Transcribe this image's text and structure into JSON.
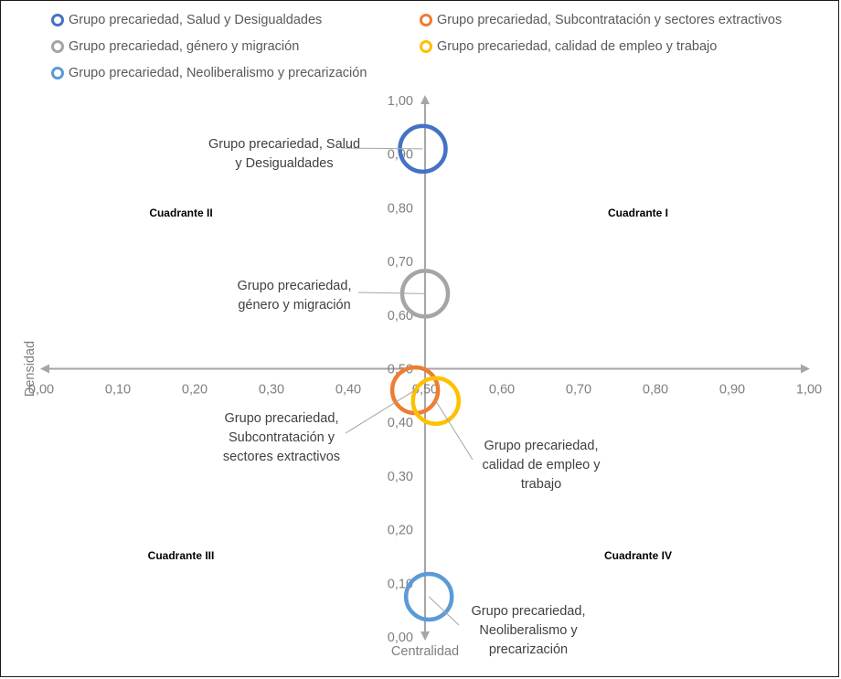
{
  "chart_data": {
    "type": "scatter",
    "x_axis": {
      "title": "Centralidad",
      "range": [
        0,
        1
      ],
      "ticks": [
        "0,00",
        "0,10",
        "0,20",
        "0,30",
        "0,40",
        "0,50",
        "0,60",
        "0,70",
        "0,80",
        "0,90",
        "1,00"
      ]
    },
    "y_axis": {
      "title": "Densidad",
      "range": [
        0,
        1
      ],
      "ticks": [
        "0,00",
        "0,10",
        "0,20",
        "0,30",
        "0,40",
        "0,50",
        "0,60",
        "0,70",
        "0,80",
        "0,90",
        "1,00"
      ]
    },
    "crossing": {
      "x": 0.5,
      "y": 0.5
    },
    "legend_position": "top",
    "quadrants": [
      {
        "id": "I",
        "label": "Cuadrante I",
        "position": "top-right"
      },
      {
        "id": "II",
        "label": "Cuadrante II",
        "position": "top-left"
      },
      {
        "id": "III",
        "label": "Cuadrante III",
        "position": "bottom-left"
      },
      {
        "id": "IV",
        "label": "Cuadrante IV",
        "position": "bottom-right"
      }
    ],
    "series": [
      {
        "key": "salud",
        "name": "Grupo precariedad, Salud y Desigualdades",
        "label_lines": [
          "Grupo precariedad, Salud",
          "y Desigualdades"
        ],
        "color": "#4472C4",
        "x": 0.497,
        "y": 0.91
      },
      {
        "key": "subcontratacion",
        "name": "Grupo precariedad, Subcontratación y sectores extractivos",
        "label_lines": [
          "Grupo precariedad,",
          "Subcontratación y",
          "sectores extractivos"
        ],
        "color": "#ED7D31",
        "x": 0.487,
        "y": 0.46
      },
      {
        "key": "genero",
        "name": "Grupo precariedad, género y migración",
        "label_lines": [
          "Grupo precariedad,",
          "género y migración"
        ],
        "color": "#A5A5A5",
        "x": 0.5,
        "y": 0.64
      },
      {
        "key": "calidad",
        "name": "Grupo precariedad, calidad de empleo y trabajo",
        "label_lines": [
          "Grupo precariedad,",
          "calidad de empleo y",
          "trabajo"
        ],
        "color": "#FFC000",
        "x": 0.514,
        "y": 0.44
      },
      {
        "key": "neoliberalismo",
        "name": "Grupo precariedad, Neoliberalismo y precarización",
        "label_lines": [
          "Grupo precariedad,",
          "Neoliberalismo y",
          "precarización"
        ],
        "color": "#5B9BD5",
        "x": 0.505,
        "y": 0.075
      }
    ]
  }
}
